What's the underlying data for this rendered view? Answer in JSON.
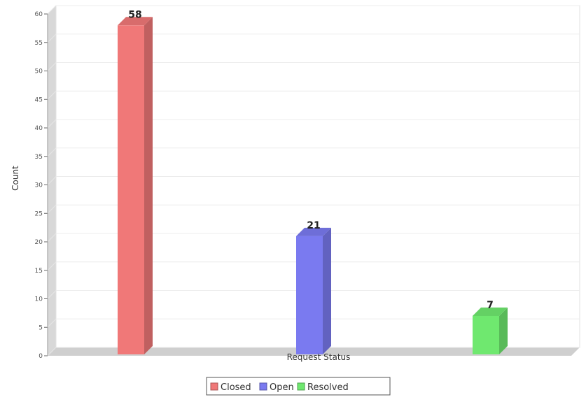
{
  "chart_data": {
    "type": "bar",
    "xlabel": "Request Status",
    "ylabel": "Count",
    "ylim": [
      0,
      60
    ],
    "yticks": [
      0,
      5,
      10,
      15,
      20,
      25,
      30,
      35,
      40,
      45,
      50,
      55,
      60
    ],
    "grid": true,
    "legend_position": "bottom",
    "series": [
      {
        "name": "Closed",
        "value": 58,
        "label": "58",
        "color": "#f07878"
      },
      {
        "name": "Open",
        "value": 21,
        "label": "21",
        "color": "#7a7af0"
      },
      {
        "name": "Resolved",
        "value": 7,
        "label": "7",
        "color": "#6fe86f"
      }
    ]
  }
}
